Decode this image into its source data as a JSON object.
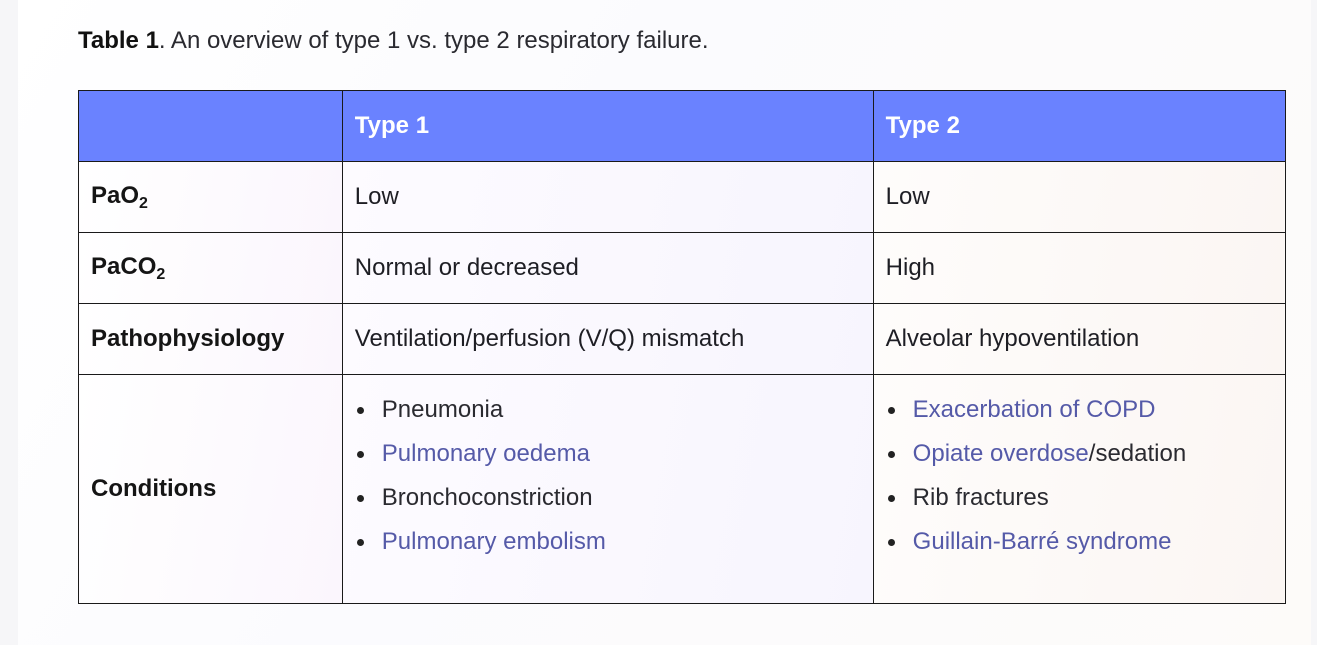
{
  "caption": {
    "label": "Table 1",
    "text": ". An overview of type 1 vs. type 2 respiratory failure."
  },
  "table": {
    "headers": [
      "",
      "Type 1",
      "Type 2"
    ],
    "rows": {
      "pao2": {
        "label_main": "PaO",
        "label_sub": "2",
        "type1": "Low",
        "type2": "Low"
      },
      "paco2": {
        "label_main": "PaCO",
        "label_sub": "2",
        "type1": "Normal or decreased",
        "type2": "High"
      },
      "patho": {
        "label": "Pathophysiology",
        "type1": "Ventilation/perfusion (V/Q) mismatch",
        "type2": "Alveolar hypoventilation"
      },
      "conditions": {
        "label": "Conditions",
        "type1": [
          {
            "text": "Pneumonia",
            "link": false
          },
          {
            "text": "Pulmonary oedema",
            "link": true
          },
          {
            "text": "Bronchoconstriction",
            "link": false
          },
          {
            "text": "Pulmonary embolism",
            "link": true
          }
        ],
        "type2": [
          {
            "text": "Exacerbation of COPD",
            "link": true
          },
          {
            "link_part": "Opiate overdose",
            "rest": "/sedation"
          },
          {
            "text": "Rib fractures",
            "link": false
          },
          {
            "text": "Guillain-Barré syndrome",
            "link": true
          }
        ]
      }
    }
  },
  "colors": {
    "header_bg": "#6a82ff",
    "header_text": "#ffffff",
    "link": "#555aa8",
    "border": "#1a1a1a"
  }
}
